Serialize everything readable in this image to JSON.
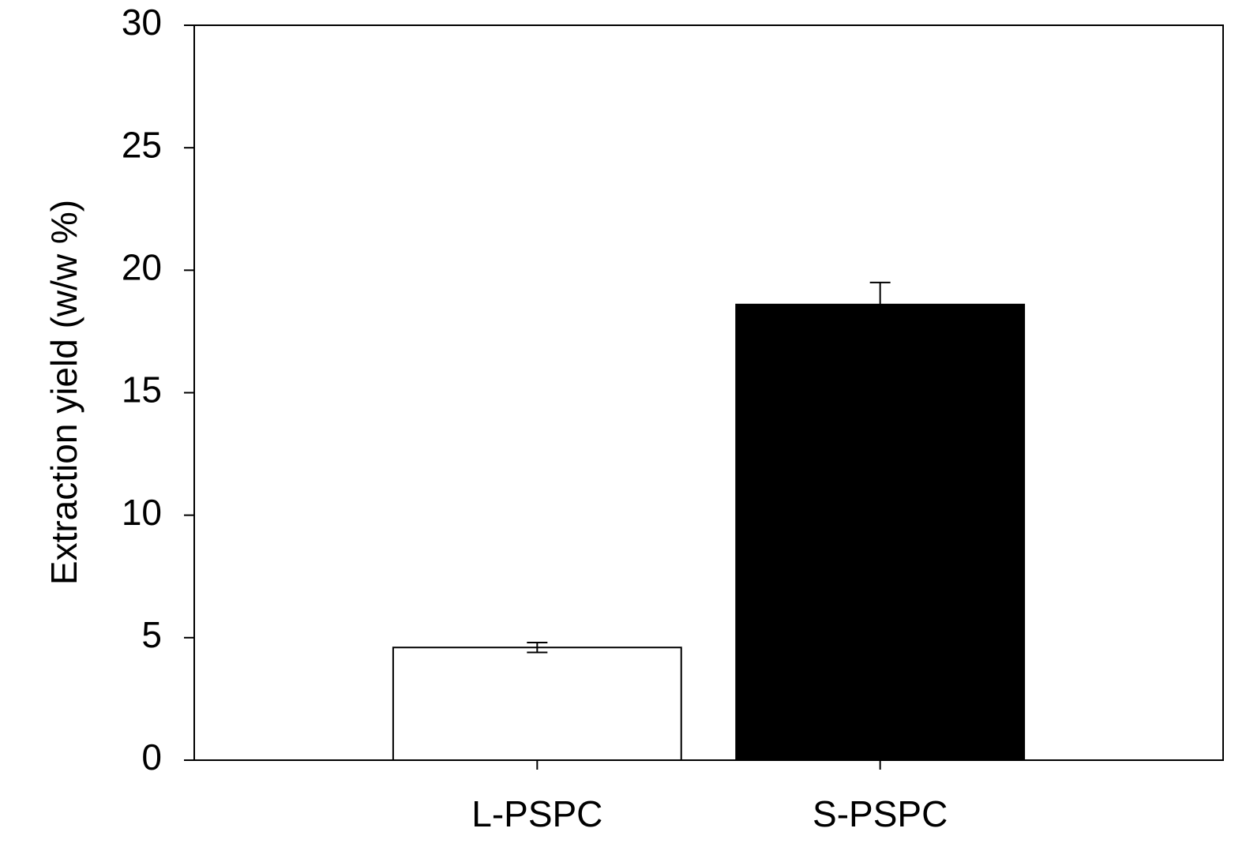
{
  "chart_data": {
    "type": "bar",
    "y_label": "Extraction yield (w/w %)",
    "categories": [
      "L-PSPC",
      "S-PSPC"
    ],
    "values": [
      4.6,
      18.6
    ],
    "errors": [
      0.2,
      0.9
    ],
    "colors": [
      "#ffffff",
      "#000000"
    ],
    "ylim": [
      0,
      30
    ],
    "yticks": [
      0,
      5,
      10,
      15,
      20,
      25,
      30
    ]
  }
}
